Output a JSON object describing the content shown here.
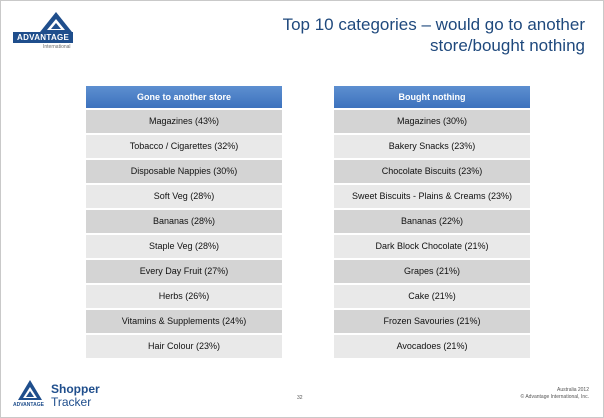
{
  "logo": {
    "wordmark": "ADVANTAGE",
    "sub": "International"
  },
  "title": "Top 10 categories – would go to another store/bought nothing",
  "left_table": {
    "header": "Gone to another store",
    "rows": [
      "Magazines  (43%)",
      "Tobacco / Cigarettes  (32%)",
      "Disposable Nappies  (30%)",
      "Soft Veg  (28%)",
      "Bananas  (28%)",
      "Staple Veg  (28%)",
      "Every Day Fruit  (27%)",
      "Herbs  (26%)",
      "Vitamins & Supplements  (24%)",
      "Hair Colour  (23%)"
    ]
  },
  "right_table": {
    "header": "Bought nothing",
    "rows": [
      "Magazines  (30%)",
      "Bakery Snacks  (23%)",
      "Chocolate Biscuits  (23%)",
      "Sweet Biscuits - Plains & Creams  (23%)",
      "Bananas  (22%)",
      "Dark Block Chocolate  (21%)",
      "Grapes  (21%)",
      "Cake  (21%)",
      "Frozen Savouries  (21%)",
      "Avocadoes  (21%)"
    ]
  },
  "footer": {
    "brand_small": "ADVANTAGE",
    "product_line1": "Shopper",
    "product_line2": "Tracker",
    "page_number": "32",
    "region_year": "Australia 2012",
    "copyright": "© Advantage International, Inc."
  },
  "colors": {
    "header_blue": "#4a7fc4",
    "title_blue": "#1f497d",
    "brand_blue": "#1f4e8c"
  }
}
